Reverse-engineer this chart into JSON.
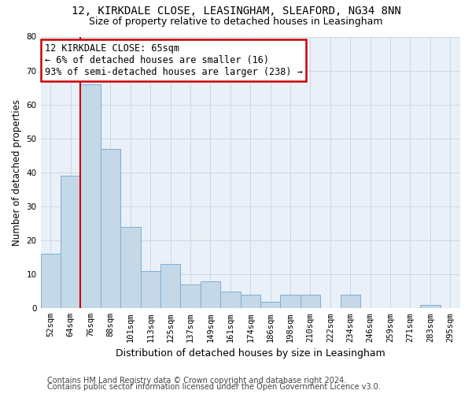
{
  "title1": "12, KIRKDALE CLOSE, LEASINGHAM, SLEAFORD, NG34 8NN",
  "title2": "Size of property relative to detached houses in Leasingham",
  "xlabel": "Distribution of detached houses by size in Leasingham",
  "ylabel": "Number of detached properties",
  "categories": [
    "52sqm",
    "64sqm",
    "76sqm",
    "88sqm",
    "101sqm",
    "113sqm",
    "125sqm",
    "137sqm",
    "149sqm",
    "161sqm",
    "174sqm",
    "186sqm",
    "198sqm",
    "210sqm",
    "222sqm",
    "234sqm",
    "246sqm",
    "259sqm",
    "271sqm",
    "283sqm",
    "295sqm"
  ],
  "values": [
    16,
    39,
    66,
    47,
    24,
    11,
    13,
    7,
    8,
    5,
    4,
    2,
    4,
    4,
    0,
    4,
    0,
    0,
    0,
    1,
    0
  ],
  "bar_color": "#c5d8e8",
  "bar_edge_color": "#7bafd4",
  "red_line_x": 1.5,
  "annotation_line1": "12 KIRKDALE CLOSE: 65sqm",
  "annotation_line2": "← 6% of detached houses are smaller (16)",
  "annotation_line3": "93% of semi-detached houses are larger (238) →",
  "annotation_box_facecolor": "#ffffff",
  "annotation_box_edgecolor": "#cc0000",
  "red_line_color": "#cc0000",
  "ylim": [
    0,
    80
  ],
  "yticks": [
    0,
    10,
    20,
    30,
    40,
    50,
    60,
    70,
    80
  ],
  "grid_color": "#c8d4e0",
  "background_color": "#eaf0f8",
  "footnote1": "Contains HM Land Registry data © Crown copyright and database right 2024.",
  "footnote2": "Contains public sector information licensed under the Open Government Licence v3.0.",
  "title1_fontsize": 10,
  "title2_fontsize": 9,
  "xlabel_fontsize": 9,
  "ylabel_fontsize": 8.5,
  "tick_fontsize": 7.5,
  "annotation_fontsize": 8.5,
  "footnote_fontsize": 7
}
